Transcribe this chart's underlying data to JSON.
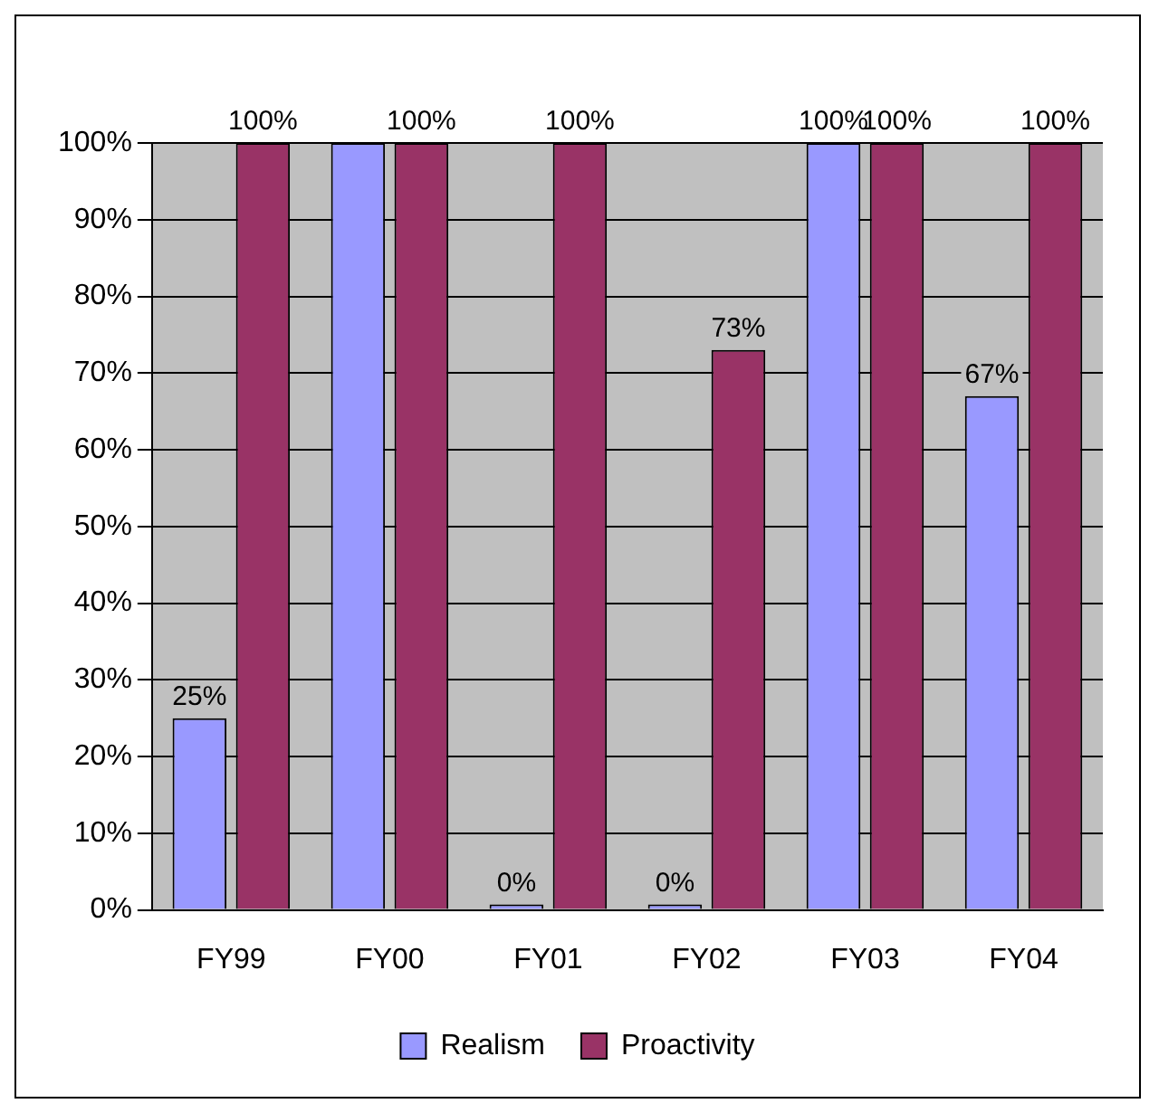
{
  "chart_data": {
    "type": "bar",
    "categories": [
      "FY99",
      "FY00",
      "FY01",
      "FY02",
      "FY03",
      "FY04"
    ],
    "series": [
      {
        "name": "Realism",
        "color": "#9999ff",
        "values": [
          25,
          100,
          0,
          0,
          100,
          67
        ],
        "value_labels": [
          "25%",
          null,
          "0%",
          "0%",
          "100%",
          "67%"
        ]
      },
      {
        "name": "Proactivity",
        "color": "#993366",
        "values": [
          100,
          100,
          100,
          73,
          100,
          100
        ],
        "value_labels": [
          "100%",
          "100%",
          "100%",
          "73%",
          "100%",
          "100%"
        ]
      }
    ],
    "ylim": [
      0,
      100
    ],
    "yticks": [
      {
        "value": 0,
        "label": "0%"
      },
      {
        "value": 10,
        "label": "10%"
      },
      {
        "value": 20,
        "label": "20%"
      },
      {
        "value": 30,
        "label": "30%"
      },
      {
        "value": 40,
        "label": "40%"
      },
      {
        "value": 50,
        "label": "50%"
      },
      {
        "value": 60,
        "label": "60%"
      },
      {
        "value": 70,
        "label": "70%"
      },
      {
        "value": 80,
        "label": "80%"
      },
      {
        "value": 90,
        "label": "90%"
      },
      {
        "value": 100,
        "label": "100%"
      }
    ],
    "grid": "y",
    "legend": "bottom"
  }
}
